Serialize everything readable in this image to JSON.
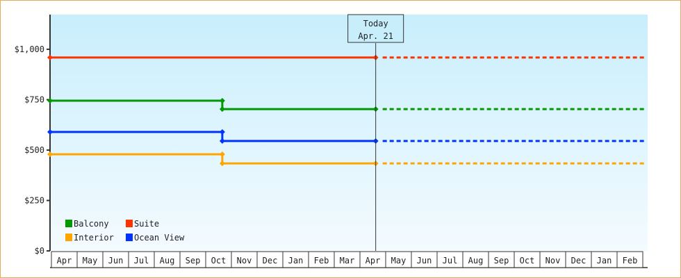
{
  "chart_data": {
    "type": "line",
    "title": "",
    "xlabel": "",
    "ylabel": "",
    "ylim": [
      0,
      1172
    ],
    "y_ticks": [
      {
        "value": 0,
        "label": "$0"
      },
      {
        "value": 250,
        "label": "$250"
      },
      {
        "value": 500,
        "label": "$500"
      },
      {
        "value": 750,
        "label": "$750"
      },
      {
        "value": 1000,
        "label": "$1,000"
      }
    ],
    "x_ticks": [
      "Apr",
      "May",
      "Jun",
      "Jul",
      "Aug",
      "Sep",
      "Oct",
      "Nov",
      "Dec",
      "Jan",
      "Feb",
      "Mar",
      "Apr",
      "May",
      "Jun",
      "Jul",
      "Aug",
      "Sep",
      "Oct",
      "Nov",
      "Dec",
      "Jan",
      "Feb"
    ],
    "grid": false,
    "background": "gradient light blue",
    "today": {
      "line1": "Today",
      "line2": "Apr. 21",
      "date": "Apr 21"
    },
    "legend_placement": "bottom-left",
    "series": [
      {
        "name": "Balcony",
        "color": "#009900",
        "points": [
          {
            "date": "Apr 1",
            "value": 745
          },
          {
            "date": "Oct 22",
            "value": 745
          },
          {
            "date": "Oct 22",
            "value": 703
          },
          {
            "date": "Apr 21",
            "value": 703
          }
        ],
        "projected_value": 703
      },
      {
        "name": "Suite",
        "color": "#ff3300",
        "points": [
          {
            "date": "Apr 1",
            "value": 959
          },
          {
            "date": "Apr 21",
            "value": 959
          }
        ],
        "projected_value": 959
      },
      {
        "name": "Interior",
        "color": "#ffa500",
        "points": [
          {
            "date": "Apr 1",
            "value": 479
          },
          {
            "date": "Oct 22",
            "value": 479
          },
          {
            "date": "Oct 22",
            "value": 434
          },
          {
            "date": "Apr 21",
            "value": 434
          }
        ],
        "projected_value": 434
      },
      {
        "name": "Ocean View",
        "color": "#0033ff",
        "points": [
          {
            "date": "Apr 1",
            "value": 590
          },
          {
            "date": "Oct 22",
            "value": 590
          },
          {
            "date": "Oct 22",
            "value": 545
          },
          {
            "date": "Apr 21",
            "value": 545
          }
        ],
        "projected_value": 545
      }
    ]
  }
}
